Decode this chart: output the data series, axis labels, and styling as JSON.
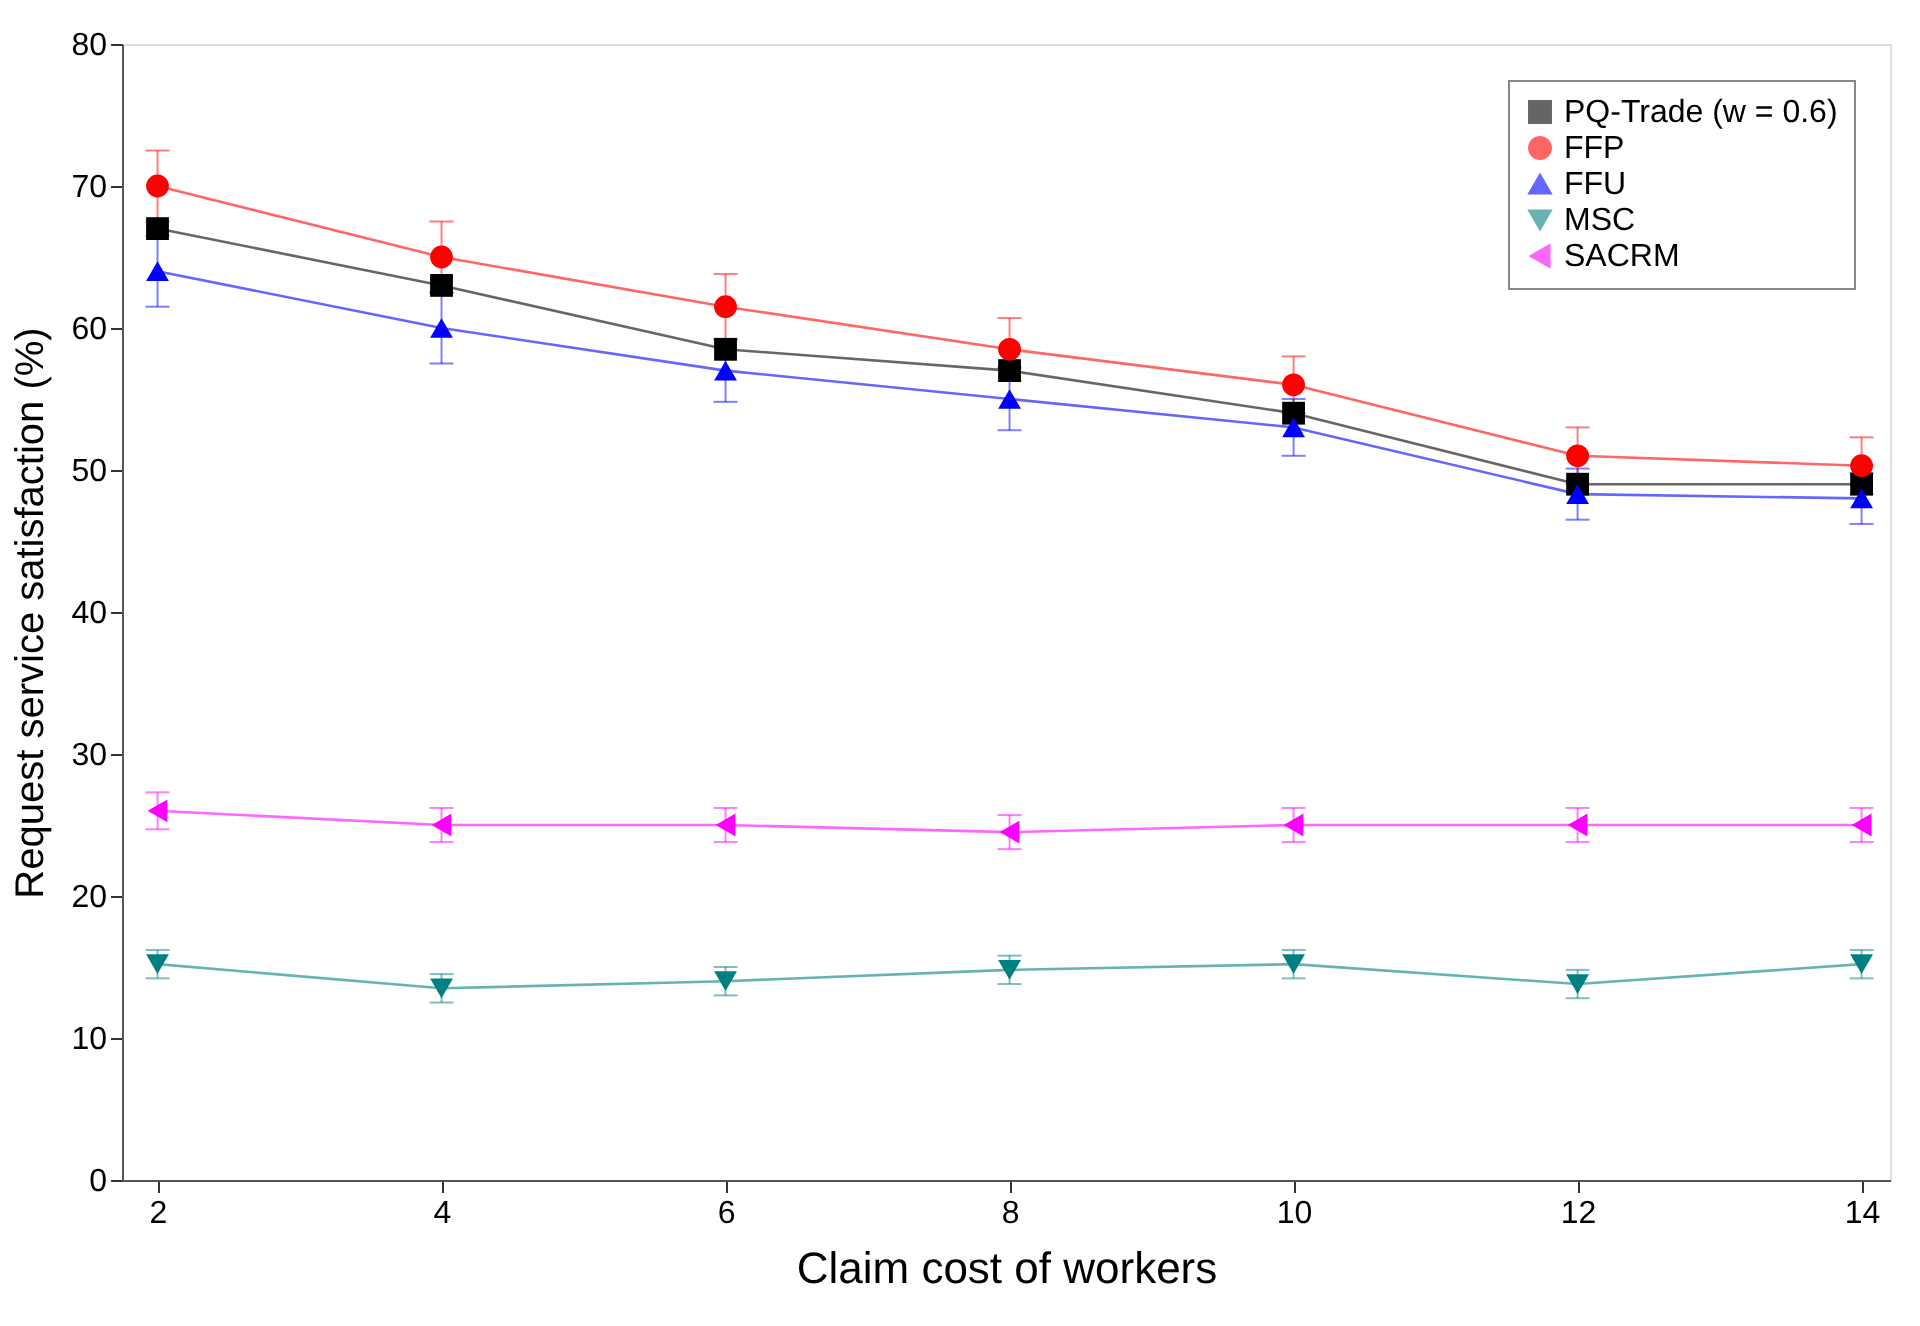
{
  "chart_data": {
    "type": "line",
    "xlabel": "Claim cost of workers",
    "ylabel": "Request service satisfaction (%)",
    "x": [
      2,
      4,
      6,
      8,
      10,
      12,
      14
    ],
    "series": [
      {
        "name": "PQ-Trade (w = 0.6)",
        "color": "#000000",
        "marker": "square",
        "values": [
          67,
          63,
          58.5,
          57,
          54,
          49,
          49
        ]
      },
      {
        "name": "FFP",
        "color": "#ff0000",
        "marker": "circle",
        "values": [
          70,
          65,
          61.5,
          58.5,
          56,
          51,
          50.3
        ],
        "errors": [
          2.5,
          2.5,
          2.3,
          2.2,
          2,
          2,
          2
        ]
      },
      {
        "name": "FFU",
        "color": "#0000ff",
        "marker": "triangle",
        "values": [
          64,
          60,
          57,
          55,
          53,
          48.3,
          48
        ],
        "errors": [
          2.5,
          2.5,
          2.2,
          2.2,
          2,
          1.8,
          1.8
        ]
      },
      {
        "name": "MSC",
        "color": "#008080",
        "marker": "triangle-down",
        "values": [
          15.2,
          13.5,
          14,
          14.8,
          15.2,
          13.8,
          15.2
        ],
        "errors": [
          1,
          1,
          1,
          1,
          1,
          1,
          1
        ]
      },
      {
        "name": "SACRM",
        "color": "#ff00ff",
        "marker": "triangle-left",
        "values": [
          26,
          25,
          25,
          24.5,
          25,
          25,
          25
        ],
        "errors": [
          1.3,
          1.2,
          1.2,
          1.2,
          1.2,
          1.2,
          1.2
        ]
      }
    ],
    "xlim": [
      1.75,
      14.2
    ],
    "xticks": [
      2,
      4,
      6,
      8,
      10,
      12,
      14
    ],
    "ylim": [
      0,
      80
    ],
    "yticks": [
      0,
      10,
      20,
      30,
      40,
      50,
      60,
      70,
      80
    ],
    "grid": false,
    "legend": "top right"
  }
}
